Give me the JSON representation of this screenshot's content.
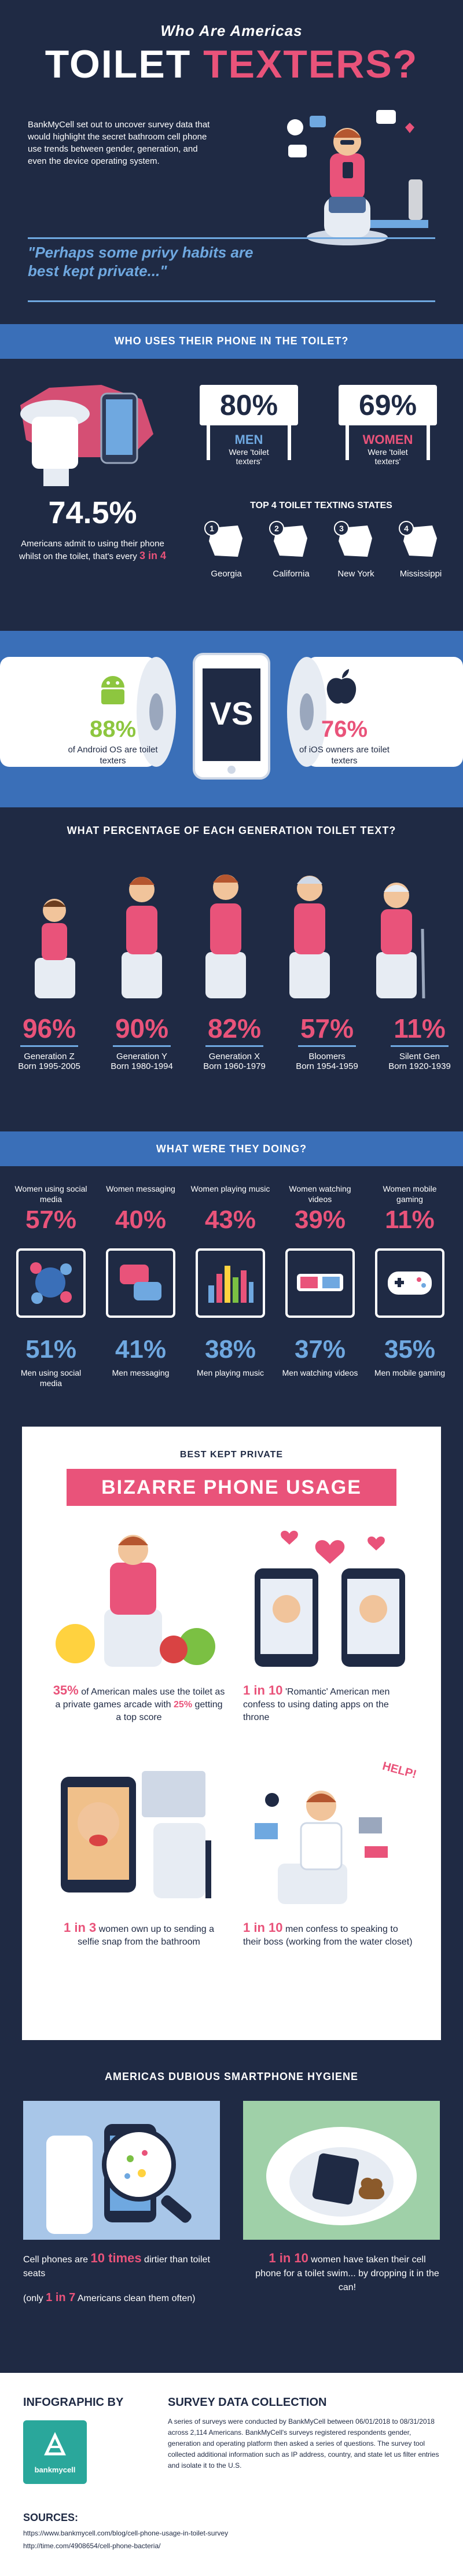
{
  "header": {
    "kicker": "Who Are Americas",
    "title_word1": "TOILET",
    "title_word2": "TEXTERS?",
    "intro": "BankMyCell set out to uncover survey data that would highlight the secret bathroom cell phone use trends between gender, generation, and even the device operating system.",
    "quote": "\"Perhaps some privy habits are best kept private...\""
  },
  "who": {
    "heading": "WHO USES THEIR PHONE IN THE TOILET?",
    "overall_pct": "74.5%",
    "overall_caption": "Americans admit to using their phone whilst on the toilet, that's every",
    "overall_highlight": "3 in 4",
    "men_pct": "80%",
    "men_label": "MEN",
    "men_caption": "Were 'toilet texters'",
    "women_pct": "69%",
    "women_label": "WOMEN",
    "women_caption": "Were 'toilet texters'",
    "states_heading": "TOP 4 TOILET TEXTING STATES",
    "states": [
      {
        "rank": "1",
        "name": "Georgia"
      },
      {
        "rank": "2",
        "name": "California"
      },
      {
        "rank": "3",
        "name": "New York"
      },
      {
        "rank": "4",
        "name": "Mississippi"
      }
    ]
  },
  "os": {
    "vs": "VS",
    "android_pct": "88%",
    "android_caption": "of Android OS are toilet texters",
    "ios_pct": "76%",
    "ios_caption": "of iOS owners are toilet texters"
  },
  "generation": {
    "heading": "WHAT PERCENTAGE OF EACH GENERATION TOILET TEXT?",
    "items": [
      {
        "pct": "96%",
        "name": "Generation Z",
        "years": "Born 1995-2005"
      },
      {
        "pct": "90%",
        "name": "Generation Y",
        "years": "Born 1980-1994"
      },
      {
        "pct": "82%",
        "name": "Generation X",
        "years": "Born 1960-1979"
      },
      {
        "pct": "57%",
        "name": "Bloomers",
        "years": "Born 1954-1959"
      },
      {
        "pct": "11%",
        "name": "Silent Gen",
        "years": "Born 1920-1939"
      }
    ]
  },
  "activities": {
    "heading": "WHAT WERE THEY DOING?",
    "items": [
      {
        "women_label": "Women using social media",
        "women_pct": "57%",
        "men_pct": "51%",
        "men_label": "Men using social media",
        "icon": "social-media-icon"
      },
      {
        "women_label": "Women messaging",
        "women_pct": "40%",
        "men_pct": "41%",
        "men_label": "Men messaging",
        "icon": "messaging-icon"
      },
      {
        "women_label": "Women playing music",
        "women_pct": "43%",
        "men_pct": "38%",
        "men_label": "Men playing music",
        "icon": "equalizer-icon"
      },
      {
        "women_label": "Women watching videos",
        "women_pct": "39%",
        "men_pct": "37%",
        "men_label": "Men watching videos",
        "icon": "3d-glasses-icon"
      },
      {
        "women_label": "Women mobile gaming",
        "women_pct": "11%",
        "men_pct": "35%",
        "men_label": "Men mobile gaming",
        "icon": "game-controller-icon"
      }
    ]
  },
  "bizarre": {
    "kicker": "BEST KEPT PRIVATE",
    "title": "BIZARRE PHONE USAGE",
    "card1_pct": "35%",
    "card1_text_a": "of American males use the toilet as a private games arcade with",
    "card1_pct2": "25%",
    "card1_text_b": "getting a top score",
    "card2_hl": "1 in 10",
    "card2_text": "'Romantic' American men confess to using dating apps on the throne",
    "card3_hl": "1 in 3",
    "card3_text": "women own up to sending a selfie snap from the bathroom",
    "card4_hl": "1 in 10",
    "card4_text": "men confess to speaking to their boss (working from the water closet)",
    "help_text": "HELP!"
  },
  "hygiene": {
    "heading": "AMERICAS DUBIOUS SMARTPHONE HYGIENE",
    "left_a": "Cell phones are",
    "left_hl": "10 times",
    "left_b": "dirtier than toilet seats",
    "left_c_a": "(only",
    "left_c_hl": "1 in 7",
    "left_c_b": "Americans clean them often)",
    "right_hl": "1 in 10",
    "right_text": "women have taken their cell phone for a toilet swim... by dropping it in the can!"
  },
  "footer": {
    "infographic_by": "INFOGRAPHIC BY",
    "logo_text": "bankmycell",
    "survey_heading": "SURVEY DATA COLLECTION",
    "survey_text": "A series of surveys were conducted by BankMyCell between 06/01/2018 to 08/31/2018 across 2,114 Americans. BankMyCell's surveys registered respondents gender, generation and operating platform then asked a series of questions. The survey tool collected additional information such as IP address, country, and state let us filter entries and isolate it to the U.S.",
    "sources_heading": "SOURCES:",
    "source1": "https://www.bankmycell.com/blog/cell-phone-usage-in-toilet-survey",
    "source2": "http://time.com/4908654/cell-phone-bacteria/"
  },
  "colors": {
    "navy": "#1f2a44",
    "pink": "#e9537a",
    "blue": "#3a6fb8",
    "light_blue": "#6fa8e0"
  }
}
